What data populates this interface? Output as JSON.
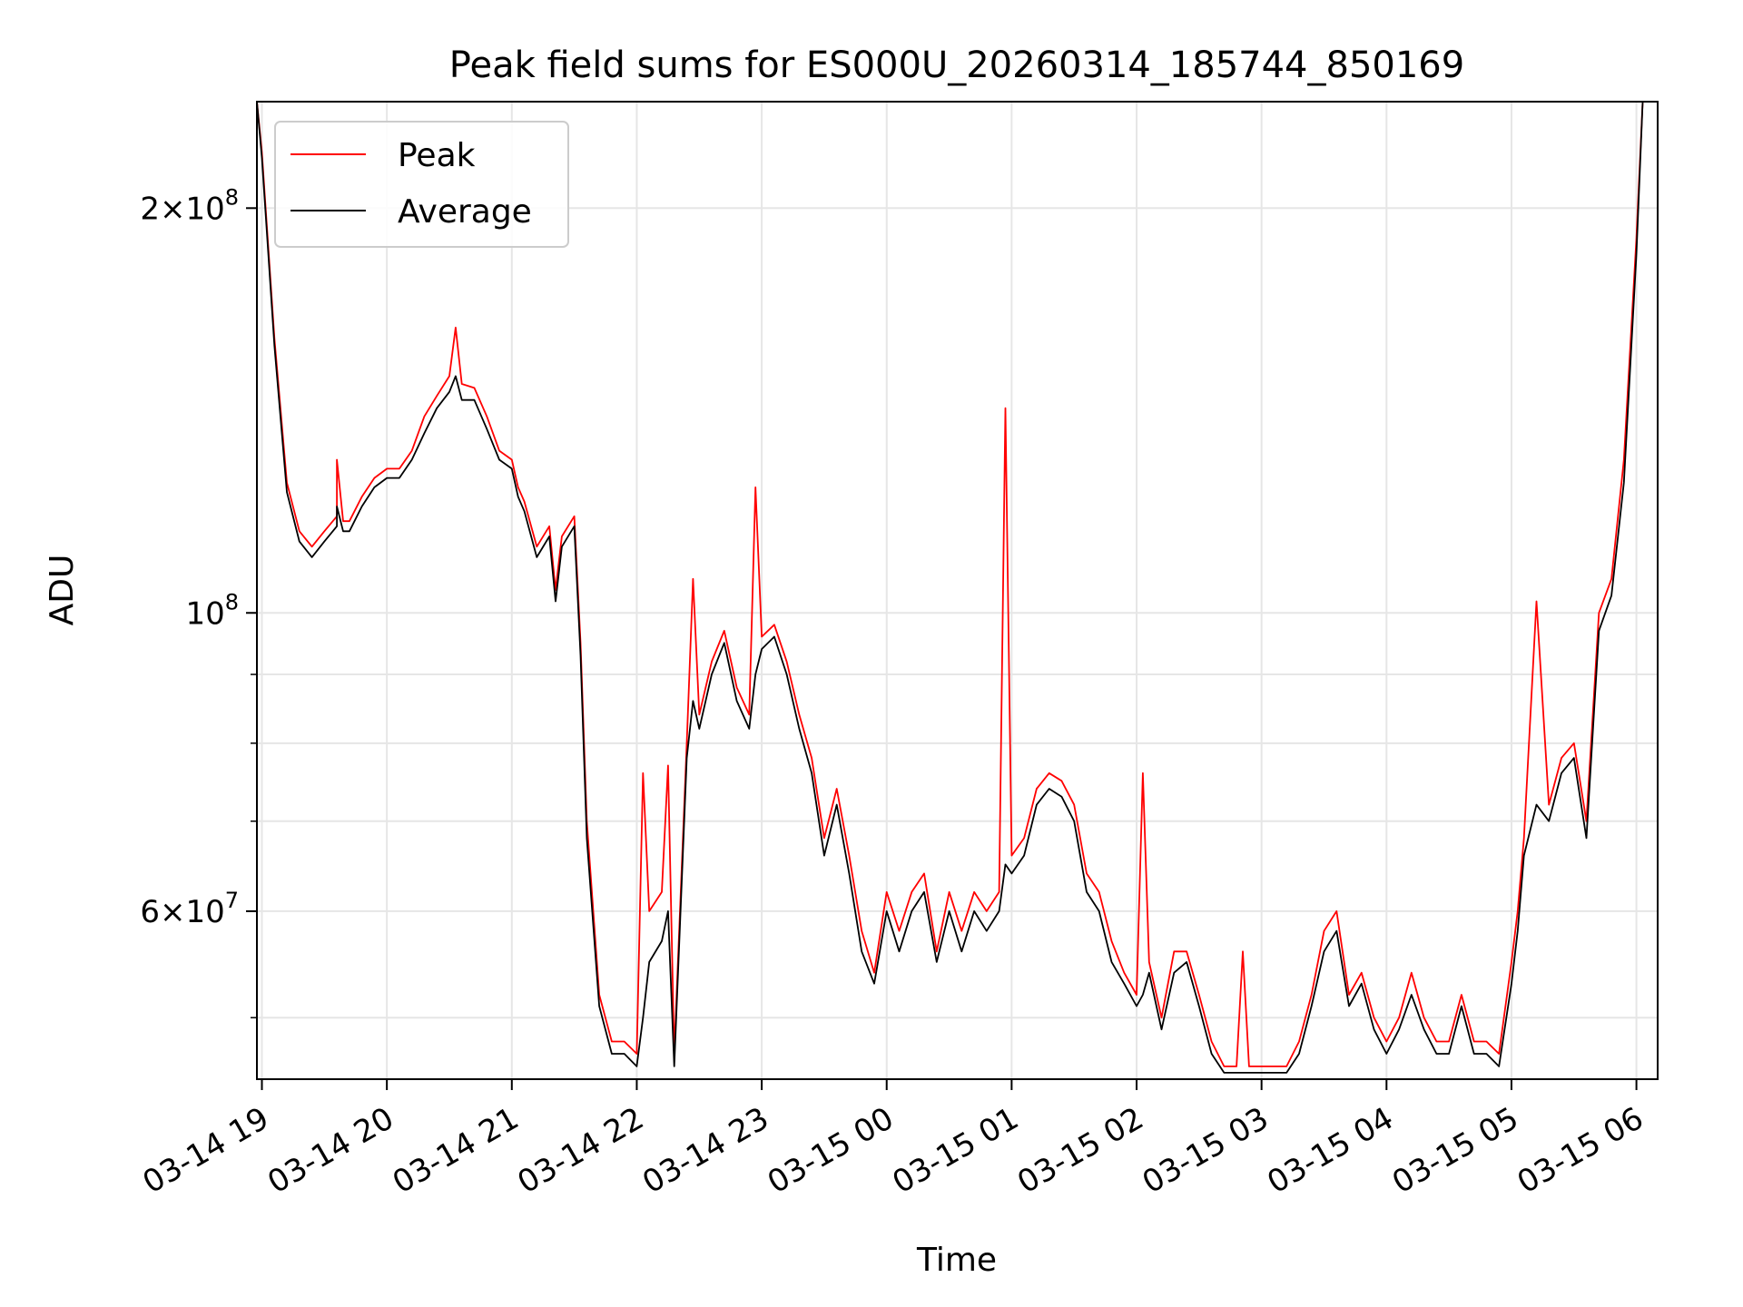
{
  "chart_data": {
    "type": "line",
    "title": "Peak field sums for ES000U_20260314_185744_850169",
    "xlabel": "Time",
    "ylabel": "ADU",
    "x_unit": "hours since 03-14 19:00",
    "xlim": [
      -0.04,
      11.17
    ],
    "ylim": [
      45000000.0,
      240000000.0
    ],
    "yscale": "log",
    "grid": true,
    "legend_position": "upper-left",
    "x_ticks": [
      {
        "value": 0,
        "label": "03-14 19"
      },
      {
        "value": 1,
        "label": "03-14 20"
      },
      {
        "value": 2,
        "label": "03-14 21"
      },
      {
        "value": 3,
        "label": "03-14 22"
      },
      {
        "value": 4,
        "label": "03-14 23"
      },
      {
        "value": 5,
        "label": "03-15 00"
      },
      {
        "value": 6,
        "label": "03-15 01"
      },
      {
        "value": 7,
        "label": "03-15 02"
      },
      {
        "value": 8,
        "label": "03-15 03"
      },
      {
        "value": 9,
        "label": "03-15 04"
      },
      {
        "value": 10,
        "label": "03-15 05"
      },
      {
        "value": 11,
        "label": "03-15 06"
      }
    ],
    "y_major_ticks": [
      {
        "value": 60000000,
        "mantissa": "6",
        "exponent": "7"
      },
      {
        "value": 100000000,
        "mantissa": "",
        "exponent": "8"
      },
      {
        "value": 200000000,
        "mantissa": "2",
        "exponent": "8"
      }
    ],
    "y_minor_ticks": [
      50000000,
      70000000,
      80000000,
      90000000
    ],
    "series": [
      {
        "name": "Peak",
        "color": "#ff0000",
        "x": [
          -0.04,
          0.0,
          0.1,
          0.2,
          0.3,
          0.4,
          0.5,
          0.6,
          0.6,
          0.65,
          0.7,
          0.8,
          0.9,
          1.0,
          1.1,
          1.2,
          1.3,
          1.4,
          1.5,
          1.55,
          1.6,
          1.7,
          1.8,
          1.9,
          2.0,
          2.05,
          2.1,
          2.2,
          2.3,
          2.35,
          2.4,
          2.5,
          2.55,
          2.6,
          2.7,
          2.8,
          2.9,
          3.0,
          3.05,
          3.1,
          3.2,
          3.25,
          3.3,
          3.4,
          3.45,
          3.5,
          3.6,
          3.7,
          3.8,
          3.9,
          3.95,
          4.0,
          4.1,
          4.2,
          4.3,
          4.4,
          4.5,
          4.6,
          4.7,
          4.8,
          4.9,
          5.0,
          5.1,
          5.2,
          5.3,
          5.4,
          5.5,
          5.6,
          5.7,
          5.8,
          5.9,
          5.95,
          6.0,
          6.1,
          6.2,
          6.3,
          6.4,
          6.5,
          6.6,
          6.7,
          6.8,
          6.9,
          7.0,
          7.05,
          7.1,
          7.2,
          7.3,
          7.4,
          7.5,
          7.6,
          7.7,
          7.8,
          7.85,
          7.9,
          8.0,
          8.1,
          8.2,
          8.3,
          8.4,
          8.5,
          8.6,
          8.7,
          8.8,
          8.9,
          9.0,
          9.1,
          9.2,
          9.3,
          9.4,
          9.5,
          9.6,
          9.7,
          9.8,
          9.9,
          10.0,
          10.05,
          10.1,
          10.2,
          10.3,
          10.4,
          10.5,
          10.6,
          10.7,
          10.8,
          10.9,
          11.0,
          11.05
        ],
        "values": [
          240000000,
          220000000,
          160000000,
          125000000,
          115000000,
          112000000,
          115000000,
          118000000,
          130000000,
          117000000,
          117000000,
          122000000,
          126000000,
          128000000,
          128000000,
          132000000,
          140000000,
          145000000,
          150000000,
          163000000,
          148000000,
          147000000,
          140000000,
          132000000,
          130000000,
          124000000,
          121000000,
          112000000,
          116000000,
          104000000,
          114000000,
          118000000,
          95000000,
          70000000,
          52000000,
          48000000,
          48000000,
          47000000,
          76000000,
          60000000,
          62000000,
          77000000,
          47000000,
          80000000,
          106000000,
          84000000,
          92000000,
          97000000,
          88000000,
          84000000,
          124000000,
          96000000,
          98000000,
          92000000,
          84000000,
          78000000,
          68000000,
          74000000,
          66000000,
          58000000,
          54000000,
          62000000,
          58000000,
          62000000,
          64000000,
          56000000,
          62000000,
          58000000,
          62000000,
          60000000,
          62000000,
          142000000,
          66000000,
          68000000,
          74000000,
          76000000,
          75000000,
          72000000,
          64000000,
          62000000,
          57000000,
          54000000,
          52000000,
          76000000,
          55000000,
          50000000,
          56000000,
          56000000,
          52000000,
          48000000,
          46000000,
          46000000,
          56000000,
          46000000,
          46000000,
          46000000,
          46000000,
          48000000,
          52000000,
          58000000,
          60000000,
          52000000,
          54000000,
          50000000,
          48000000,
          50000000,
          54000000,
          50000000,
          48000000,
          48000000,
          52000000,
          48000000,
          48000000,
          47000000,
          55000000,
          60000000,
          68000000,
          102000000,
          72000000,
          78000000,
          80000000,
          70000000,
          100000000,
          106000000,
          130000000,
          190000000,
          240000000
        ]
      },
      {
        "name": "Average",
        "color": "#000000",
        "x": [
          -0.04,
          0.0,
          0.1,
          0.2,
          0.3,
          0.4,
          0.5,
          0.6,
          0.6,
          0.65,
          0.7,
          0.8,
          0.9,
          1.0,
          1.1,
          1.2,
          1.3,
          1.4,
          1.5,
          1.55,
          1.6,
          1.7,
          1.8,
          1.9,
          2.0,
          2.05,
          2.1,
          2.2,
          2.3,
          2.35,
          2.4,
          2.5,
          2.55,
          2.6,
          2.7,
          2.8,
          2.9,
          3.0,
          3.05,
          3.1,
          3.2,
          3.25,
          3.3,
          3.4,
          3.45,
          3.5,
          3.6,
          3.7,
          3.8,
          3.9,
          3.95,
          4.0,
          4.1,
          4.2,
          4.3,
          4.4,
          4.5,
          4.6,
          4.7,
          4.8,
          4.9,
          5.0,
          5.1,
          5.2,
          5.3,
          5.4,
          5.5,
          5.6,
          5.7,
          5.8,
          5.9,
          5.95,
          6.0,
          6.1,
          6.2,
          6.3,
          6.4,
          6.5,
          6.6,
          6.7,
          6.8,
          6.9,
          7.0,
          7.05,
          7.1,
          7.2,
          7.3,
          7.4,
          7.5,
          7.6,
          7.7,
          7.8,
          7.85,
          7.9,
          8.0,
          8.1,
          8.2,
          8.3,
          8.4,
          8.5,
          8.6,
          8.7,
          8.8,
          8.9,
          9.0,
          9.1,
          9.2,
          9.3,
          9.4,
          9.5,
          9.6,
          9.7,
          9.8,
          9.9,
          10.0,
          10.05,
          10.1,
          10.2,
          10.3,
          10.4,
          10.5,
          10.6,
          10.7,
          10.8,
          10.9,
          11.0,
          11.05
        ],
        "values": [
          240000000,
          218000000,
          158000000,
          123000000,
          113000000,
          110000000,
          113000000,
          116000000,
          120000000,
          115000000,
          115000000,
          120000000,
          124000000,
          126000000,
          126000000,
          130000000,
          136000000,
          142000000,
          146000000,
          150000000,
          144000000,
          144000000,
          137000000,
          130000000,
          128000000,
          122000000,
          119000000,
          110000000,
          114000000,
          102000000,
          112000000,
          116000000,
          93000000,
          68000000,
          51000000,
          47000000,
          47000000,
          46000000,
          50000000,
          55000000,
          57000000,
          60000000,
          46000000,
          78000000,
          86000000,
          82000000,
          90000000,
          95000000,
          86000000,
          82000000,
          90000000,
          94000000,
          96000000,
          90000000,
          82000000,
          76000000,
          66000000,
          72000000,
          64000000,
          56000000,
          53000000,
          60000000,
          56000000,
          60000000,
          62000000,
          55000000,
          60000000,
          56000000,
          60000000,
          58000000,
          60000000,
          65000000,
          64000000,
          66000000,
          72000000,
          74000000,
          73000000,
          70000000,
          62000000,
          60000000,
          55000000,
          53000000,
          51000000,
          52000000,
          54000000,
          49000000,
          54000000,
          55000000,
          51000000,
          47000000,
          45500000,
          45500000,
          45500000,
          45500000,
          45500000,
          45500000,
          45500000,
          47000000,
          51000000,
          56000000,
          58000000,
          51000000,
          53000000,
          49000000,
          47000000,
          49000000,
          52000000,
          49000000,
          47000000,
          47000000,
          51000000,
          47000000,
          47000000,
          46000000,
          53000000,
          58000000,
          66000000,
          72000000,
          70000000,
          76000000,
          78000000,
          68000000,
          97000000,
          103000000,
          125000000,
          185000000,
          240000000
        ]
      }
    ]
  }
}
